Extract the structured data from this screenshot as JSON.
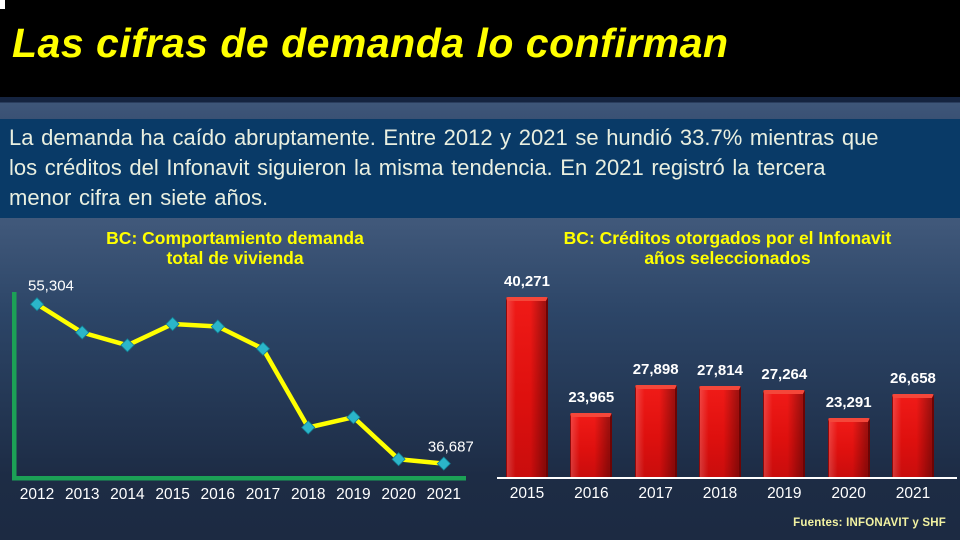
{
  "slide": {
    "title": "Las cifras de demanda lo confirman",
    "lead_lines": [
      "La demanda ha caído abruptamente. Entre 2012 y 2021 se hundió 33.7% mientras que",
      "los créditos del Infonavit siguieron la misma tendencia. En 2021 registró la tercera",
      "menor cifra en siete años."
    ],
    "footer": "Fuentes: INFONAVIT y SHF"
  },
  "colors": {
    "title_yellow": "#FFFF00",
    "lead_background": "#093A67",
    "lead_text": "#E9EFE0",
    "line_yellow": "#FFFF00",
    "marker_teal": "#2BB5C9",
    "axis_green": "#1CA156",
    "bar_red": "#DE100E",
    "baseline_white": "#FFFFFF",
    "footer_yellow": "#F2F2A2"
  },
  "chart_data": [
    {
      "type": "line",
      "title": "BC: Comportamiento demanda total de vivienda",
      "title_lines": [
        "BC: Comportamiento demanda",
        "total de vivienda"
      ],
      "x": [
        "2012",
        "2013",
        "2014",
        "2015",
        "2016",
        "2017",
        "2018",
        "2019",
        "2020",
        "2021"
      ],
      "values": [
        55304,
        52000,
        50500,
        53000,
        52700,
        50100,
        40900,
        42100,
        37200,
        36687
      ],
      "point_labels": [
        {
          "index": 0,
          "text": "55,304"
        },
        {
          "index": 9,
          "text": "36,687"
        }
      ],
      "ylim": [
        35000,
        56500
      ],
      "grid": false,
      "legend": "none",
      "line_color": "#FFFF00",
      "marker_color": "#2BB5C9",
      "axis_color": "#1CA156"
    },
    {
      "type": "bar",
      "title": "BC: Créditos otorgados por el Infonavit años seleccionados",
      "title_lines": [
        "BC: Créditos otorgados por el Infonavit",
        "años seleccionados"
      ],
      "categories": [
        "2015",
        "2016",
        "2017",
        "2018",
        "2019",
        "2020",
        "2021"
      ],
      "values": [
        40271,
        23965,
        27898,
        27814,
        27264,
        23291,
        26658
      ],
      "labels": [
        "40,271",
        "23,965",
        "27,898",
        "27,814",
        "27,264",
        "23,291",
        "26,658"
      ],
      "ylim": [
        15000,
        41000
      ],
      "grid": false,
      "legend": "none",
      "bar_color": "#DE100E"
    }
  ]
}
